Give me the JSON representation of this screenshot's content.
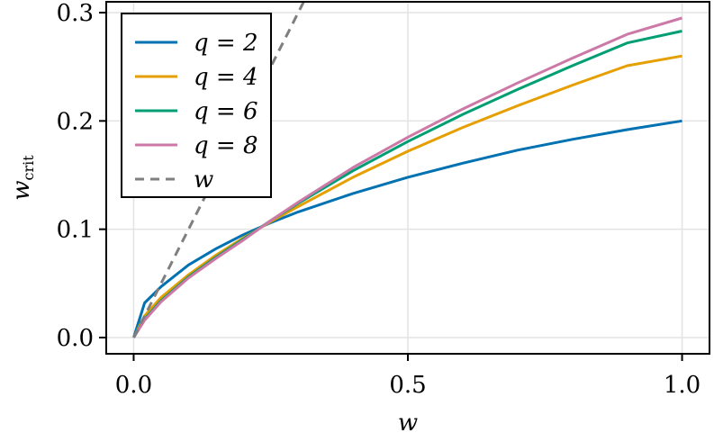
{
  "chart_data": {
    "type": "line",
    "title": "",
    "xlabel": "w",
    "ylabel": "w",
    "ylabel_subscript": "crit",
    "xlim": [
      -0.05,
      1.05
    ],
    "ylim": [
      -0.015,
      0.31
    ],
    "xticks": [
      0.0,
      0.5,
      1.0
    ],
    "xtick_labels": [
      "0.0",
      "0.5",
      "1.0"
    ],
    "yticks": [
      0.0,
      0.1,
      0.2,
      0.3
    ],
    "ytick_labels": [
      "0.0",
      "0.1",
      "0.2",
      "0.3"
    ],
    "grid": true,
    "legend_position": "top-left",
    "series": [
      {
        "name": "q = 2",
        "color": "#0072b2",
        "style": "solid",
        "x": [
          0,
          0.02,
          0.05,
          0.1,
          0.15,
          0.2,
          0.25,
          0.3,
          0.4,
          0.5,
          0.6,
          0.7,
          0.8,
          0.9,
          1.0
        ],
        "y": [
          0,
          0.032,
          0.047,
          0.067,
          0.082,
          0.095,
          0.106,
          0.116,
          0.133,
          0.148,
          0.161,
          0.173,
          0.183,
          0.192,
          0.2
        ]
      },
      {
        "name": "q = 4",
        "color": "#e69f00",
        "style": "solid",
        "x": [
          0,
          0.02,
          0.05,
          0.1,
          0.15,
          0.2,
          0.25,
          0.3,
          0.4,
          0.5,
          0.6,
          0.7,
          0.8,
          0.9,
          1.0
        ],
        "y": [
          0,
          0.02,
          0.037,
          0.058,
          0.076,
          0.092,
          0.107,
          0.121,
          0.148,
          0.172,
          0.194,
          0.214,
          0.233,
          0.251,
          0.26
        ]
      },
      {
        "name": "q = 6",
        "color": "#009e73",
        "style": "solid",
        "x": [
          0,
          0.02,
          0.05,
          0.1,
          0.15,
          0.2,
          0.25,
          0.3,
          0.4,
          0.5,
          0.6,
          0.7,
          0.8,
          0.9,
          1.0
        ],
        "y": [
          0,
          0.017,
          0.034,
          0.056,
          0.074,
          0.091,
          0.108,
          0.124,
          0.154,
          0.181,
          0.206,
          0.229,
          0.251,
          0.272,
          0.283
        ]
      },
      {
        "name": "q = 8",
        "color": "#cc79a7",
        "style": "solid",
        "x": [
          0,
          0.02,
          0.05,
          0.1,
          0.15,
          0.2,
          0.25,
          0.3,
          0.4,
          0.5,
          0.6,
          0.7,
          0.8,
          0.9,
          1.0
        ],
        "y": [
          0,
          0.016,
          0.033,
          0.055,
          0.073,
          0.09,
          0.108,
          0.125,
          0.157,
          0.185,
          0.211,
          0.235,
          0.258,
          0.28,
          0.295
        ]
      },
      {
        "name": "w",
        "color": "#7f7f7f",
        "style": "dashed",
        "x": [
          0,
          0.31
        ],
        "y": [
          0,
          0.31
        ]
      }
    ]
  }
}
